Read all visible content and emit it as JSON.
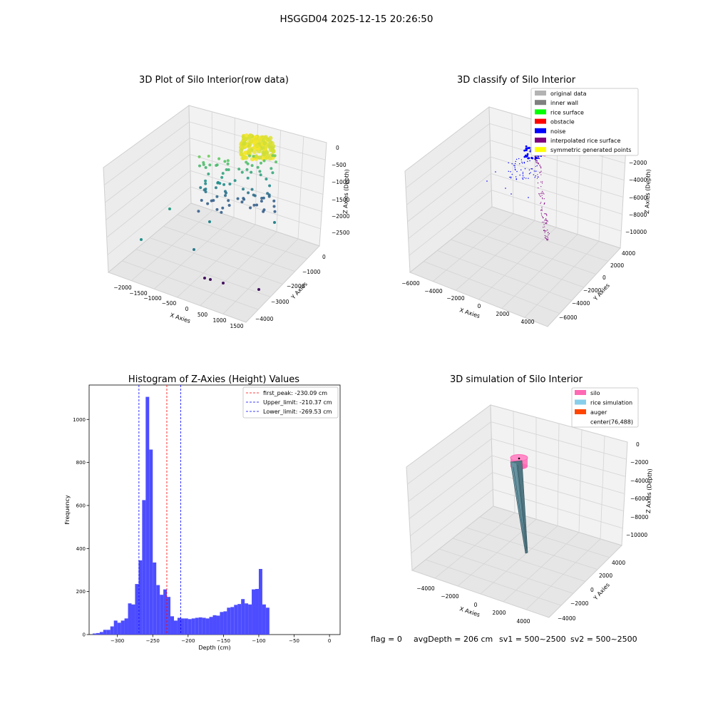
{
  "suptitle": "HSGGD04 2025-12-15 20:26:50",
  "footer": {
    "flag": "flag = 0",
    "avg_depth": "avgDepth = 206 cm",
    "sv1": "sv1 = 500~2500",
    "sv2": "sv2 = 500~2500"
  },
  "colors": {
    "hist_bar": "#4d4dff",
    "peak_line": "#ff0000",
    "limit_line": "#0000ff",
    "pane": "#f2f2f2",
    "grid": "#d6d6d6"
  },
  "chart_data": [
    {
      "type": "scatter3d",
      "title": "3D Plot of Silo Interior(row data)",
      "xlabel": "X Axies",
      "ylabel": "Y Axies",
      "zlabel": "Z Axies (Depth)",
      "x_ticks": [
        "−2000",
        "−1500",
        "−1000",
        "−500",
        "0",
        "500",
        "1000",
        "1500"
      ],
      "y_ticks": [
        "0",
        "−1000",
        "−2000",
        "−3000",
        "−4000"
      ],
      "z_ticks": [
        "0",
        "−500",
        "−1000",
        "−1500",
        "−2000",
        "−2500"
      ],
      "colormap": "viridis"
    },
    {
      "type": "scatter3d",
      "title": "3D classify of Silo Interior",
      "xlabel": "X Axies",
      "ylabel": "Y Axies",
      "zlabel": "Z Axies (Depth)",
      "x_ticks": [
        "−6000",
        "−4000",
        "−2000",
        "0",
        "2000",
        "4000"
      ],
      "y_ticks": [
        "4000",
        "2000",
        "0",
        "−2000",
        "−4000",
        "−6000"
      ],
      "z_ticks": [
        "0",
        "−2000",
        "−4000",
        "−6000",
        "−8000",
        "−10000"
      ],
      "legend_position": "top-right",
      "legend": [
        {
          "label": "original data",
          "color": "#b3b3b3"
        },
        {
          "label": "inner wall",
          "color": "#808080"
        },
        {
          "label": "rice surface",
          "color": "#00ff00"
        },
        {
          "label": "obstacle",
          "color": "#ff0000"
        },
        {
          "label": "noise",
          "color": "#0000ff"
        },
        {
          "label": "interpolated rice surface",
          "color": "#800080"
        },
        {
          "label": "symmetric generated points",
          "color": "#ffff00"
        }
      ]
    },
    {
      "type": "bar",
      "title": "Histogram of Z-Axies (Height) Values",
      "xlabel": "Depth (cm)",
      "ylabel": "Frequency",
      "xlim": [
        -340,
        15
      ],
      "ylim": [
        0,
        1160
      ],
      "x_ticks": [
        -300,
        -250,
        -200,
        -150,
        -100,
        -50,
        0
      ],
      "x_tick_labels": [
        "−300",
        "−250",
        "−200",
        "−150",
        "−100",
        "−50",
        "0"
      ],
      "y_ticks": [
        0,
        200,
        400,
        600,
        800,
        1000
      ],
      "y_tick_labels": [
        "0",
        "200",
        "400",
        "600",
        "800",
        "1000"
      ],
      "bin_start": -335,
      "bin_width": 5,
      "values": [
        5,
        7,
        12,
        22,
        22,
        38,
        65,
        55,
        65,
        75,
        145,
        140,
        235,
        345,
        625,
        1105,
        860,
        335,
        230,
        185,
        210,
        175,
        85,
        65,
        78,
        75,
        75,
        72,
        75,
        78,
        80,
        78,
        75,
        82,
        90,
        88,
        105,
        108,
        125,
        128,
        138,
        142,
        165,
        145,
        140,
        210,
        212,
        305,
        140,
        125
      ],
      "lines": [
        {
          "label": "first_peak: -230.09 cm",
          "x": -230.09,
          "color": "#ff0000"
        },
        {
          "label": "Upper_limit: -210.37 cm",
          "x": -210.37,
          "color": "#0000ff"
        },
        {
          "label": "Lower_limit: -269.53 cm",
          "x": -269.53,
          "color": "#0000ff"
        }
      ],
      "legend_position": "top-right"
    },
    {
      "type": "surface3d",
      "title": "3D simulation of Silo Interior",
      "xlabel": "X Axies",
      "ylabel": "Y Axies",
      "zlabel": "Z Axies (Depth)",
      "x_ticks": [
        "−4000",
        "−2000",
        "0",
        "2000",
        "4000"
      ],
      "y_ticks": [
        "4000",
        "2000",
        "0",
        "−2000",
        "−4000"
      ],
      "z_ticks": [
        "0",
        "−2000",
        "−4000",
        "−6000",
        "−8000",
        "−10000"
      ],
      "legend_position": "top-right",
      "legend": [
        {
          "label": "silo",
          "color": "#ff69b4"
        },
        {
          "label": "rice simulation",
          "color": "#87ceeb"
        },
        {
          "label": "auger",
          "color": "#ff4500"
        },
        {
          "label": "center(76,488)",
          "color": ""
        }
      ]
    }
  ]
}
